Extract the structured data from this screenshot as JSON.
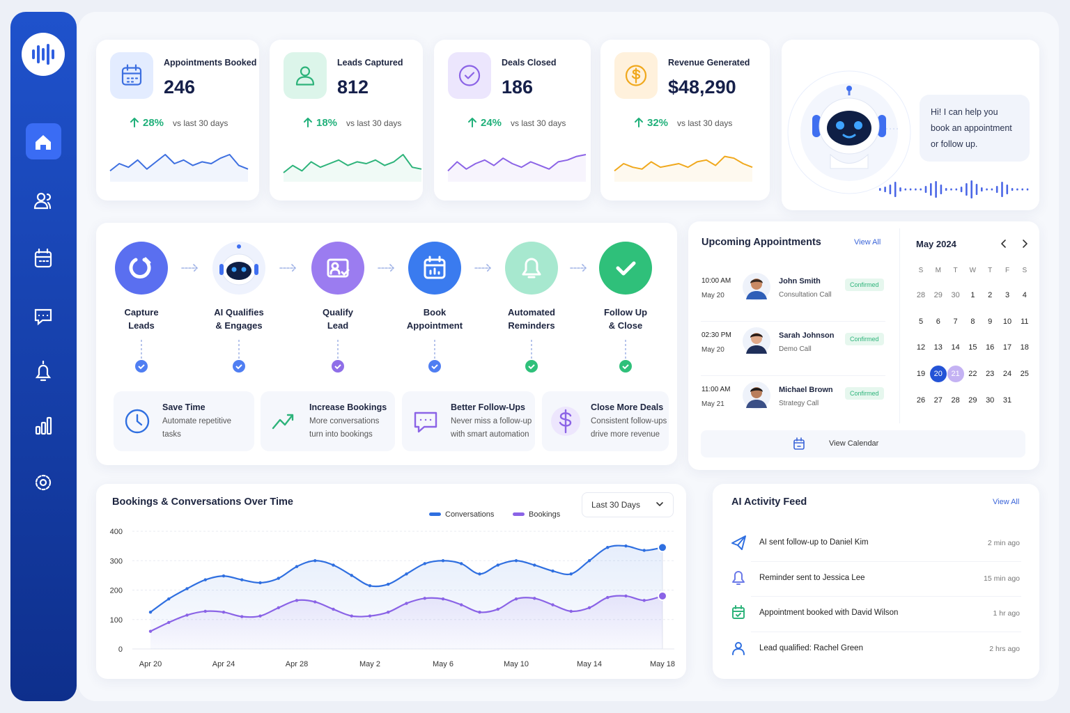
{
  "kpis": [
    {
      "label": "Appointments Booked",
      "value": "246",
      "change": "28%",
      "comparison": "vs last 30 days",
      "trend": [
        30,
        50,
        40,
        60,
        35,
        55,
        75,
        50,
        60,
        45,
        55,
        50,
        65,
        75,
        45,
        35
      ]
    },
    {
      "label": "Leads Captured",
      "value": "812",
      "change": "18%",
      "comparison": "vs last 30 days",
      "trend": [
        25,
        45,
        30,
        55,
        40,
        50,
        60,
        45,
        55,
        50,
        60,
        45,
        55,
        75,
        40,
        35
      ]
    },
    {
      "label": "Deals Closed",
      "value": "186",
      "change": "24%",
      "comparison": "vs last 30 days",
      "trend": [
        30,
        55,
        35,
        50,
        60,
        45,
        65,
        50,
        40,
        55,
        45,
        35,
        55,
        60,
        70,
        75
      ]
    },
    {
      "label": "Revenue Generated",
      "value": "$48,290",
      "change": "32%",
      "comparison": "vs last 30 days",
      "trend": [
        30,
        50,
        40,
        35,
        55,
        40,
        45,
        50,
        40,
        55,
        60,
        45,
        70,
        65,
        50,
        40
      ]
    }
  ],
  "assistant": {
    "message": [
      "Hi! I can help you",
      "book an appointment",
      "or follow up."
    ]
  },
  "pipeline": {
    "steps": [
      {
        "label": [
          "Capture",
          "Leads"
        ]
      },
      {
        "label": [
          "AI Qualifies",
          "& Engages"
        ]
      },
      {
        "label": [
          "Qualify",
          "Lead"
        ]
      },
      {
        "label": [
          "Book",
          "Appointment"
        ]
      },
      {
        "label": [
          "Automated",
          "Reminders"
        ]
      },
      {
        "label": [
          "Follow Up",
          "& Close"
        ]
      }
    ],
    "benefits": [
      {
        "title": "Save Time",
        "text": [
          "Automate repetitive",
          "tasks"
        ]
      },
      {
        "title": "Increase Bookings",
        "text": [
          "More conversations",
          "turn into bookings"
        ]
      },
      {
        "title": "Better Follow-Ups",
        "text": [
          "Never miss a follow-up",
          "with smart automation"
        ]
      },
      {
        "title": "Close More Deals",
        "text": [
          "Consistent follow-ups",
          "drive more revenue"
        ]
      }
    ]
  },
  "appointments": {
    "title": "Upcoming Appointments",
    "view_all": "View All",
    "items": [
      {
        "time": "10:00 AM",
        "date": "May 20",
        "name": "John Smith",
        "type": "Consultation Call",
        "status": "Confirmed"
      },
      {
        "time": "02:30 PM",
        "date": "May 20",
        "name": "Sarah Johnson",
        "type": "Demo Call",
        "status": "Confirmed"
      },
      {
        "time": "11:00 AM",
        "date": "May 21",
        "name": "Michael Brown",
        "type": "Strategy Call",
        "status": "Confirmed"
      }
    ],
    "view_calendar": "View Calendar"
  },
  "calendar": {
    "month": "May 2024",
    "weekdays": [
      "S",
      "M",
      "T",
      "W",
      "T",
      "F",
      "S"
    ],
    "weeks": [
      [
        28,
        29,
        30,
        1,
        2,
        3,
        4
      ],
      [
        5,
        6,
        7,
        8,
        9,
        10,
        11
      ],
      [
        12,
        13,
        14,
        15,
        16,
        17,
        18
      ],
      [
        19,
        20,
        21,
        22,
        23,
        24,
        25
      ],
      [
        26,
        27,
        28,
        29,
        30,
        31
      ]
    ],
    "selected": 20,
    "highlighted": 21
  },
  "chart_data": {
    "type": "line",
    "title": "Bookings & Conversations Over Time",
    "range_selector": "Last 30 Days",
    "categories": [
      "Apr 20",
      null,
      null,
      null,
      "Apr 24",
      null,
      null,
      null,
      "Apr 28",
      null,
      null,
      null,
      "May 2",
      null,
      null,
      null,
      "May 6",
      null,
      null,
      null,
      "May 10",
      null,
      null,
      null,
      "May 14",
      null,
      null,
      null,
      "May 18"
    ],
    "series": [
      {
        "name": "Conversations",
        "color": "#2f6fe0",
        "values": [
          125,
          170,
          205,
          235,
          248,
          235,
          225,
          240,
          280,
          300,
          285,
          250,
          215,
          220,
          255,
          290,
          300,
          290,
          255,
          285,
          300,
          285,
          265,
          255,
          300,
          345,
          350,
          335,
          345
        ]
      },
      {
        "name": "Bookings",
        "color": "#8a63e6",
        "values": [
          60,
          90,
          115,
          128,
          125,
          110,
          112,
          140,
          165,
          160,
          135,
          112,
          112,
          125,
          155,
          172,
          170,
          150,
          125,
          135,
          170,
          172,
          150,
          128,
          140,
          175,
          180,
          165,
          180
        ]
      }
    ],
    "ylim": [
      0,
      400
    ],
    "yticks": [
      0,
      100,
      200,
      300,
      400
    ],
    "grid": true
  },
  "activity_feed": {
    "title": "AI Activity Feed",
    "view_all": "View All",
    "items": [
      {
        "text": "AI sent follow-up to Daniel Kim",
        "time": "2 min ago"
      },
      {
        "text": "Reminder sent to Jessica Lee",
        "time": "15 min ago"
      },
      {
        "text": "Appointment booked with David Wilson",
        "time": "1 hr ago"
      },
      {
        "text": "Lead qualified: Rachel Green",
        "time": "2 hrs ago"
      }
    ]
  }
}
